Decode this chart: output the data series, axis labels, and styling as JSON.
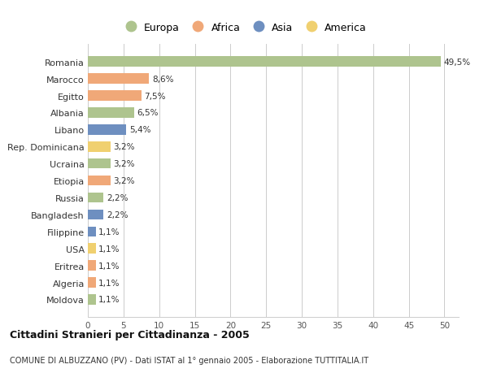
{
  "countries": [
    "Romania",
    "Marocco",
    "Egitto",
    "Albania",
    "Libano",
    "Rep. Dominicana",
    "Ucraina",
    "Etiopia",
    "Russia",
    "Bangladesh",
    "Filippine",
    "USA",
    "Eritrea",
    "Algeria",
    "Moldova"
  ],
  "values": [
    49.5,
    8.6,
    7.5,
    6.5,
    5.4,
    3.2,
    3.2,
    3.2,
    2.2,
    2.2,
    1.1,
    1.1,
    1.1,
    1.1,
    1.1
  ],
  "labels": [
    "49,5%",
    "8,6%",
    "7,5%",
    "6,5%",
    "5,4%",
    "3,2%",
    "3,2%",
    "3,2%",
    "2,2%",
    "2,2%",
    "1,1%",
    "1,1%",
    "1,1%",
    "1,1%",
    "1,1%"
  ],
  "continents": [
    "Europa",
    "Africa",
    "Africa",
    "Europa",
    "Asia",
    "America",
    "Europa",
    "Africa",
    "Europa",
    "Asia",
    "Asia",
    "America",
    "Africa",
    "Africa",
    "Europa"
  ],
  "continent_colors": {
    "Europa": "#aec48e",
    "Africa": "#f0a878",
    "Asia": "#6e8fc0",
    "America": "#f0d070"
  },
  "legend_order": [
    "Europa",
    "Africa",
    "Asia",
    "America"
  ],
  "xlim": [
    0,
    52
  ],
  "xticks": [
    0,
    5,
    10,
    15,
    20,
    25,
    30,
    35,
    40,
    45,
    50
  ],
  "title": "Cittadini Stranieri per Cittadinanza - 2005",
  "subtitle": "COMUNE DI ALBUZZANO (PV) - Dati ISTAT al 1° gennaio 2005 - Elaborazione TUTTITALIA.IT",
  "bg_color": "#ffffff",
  "grid_color": "#cccccc",
  "bar_height": 0.6
}
